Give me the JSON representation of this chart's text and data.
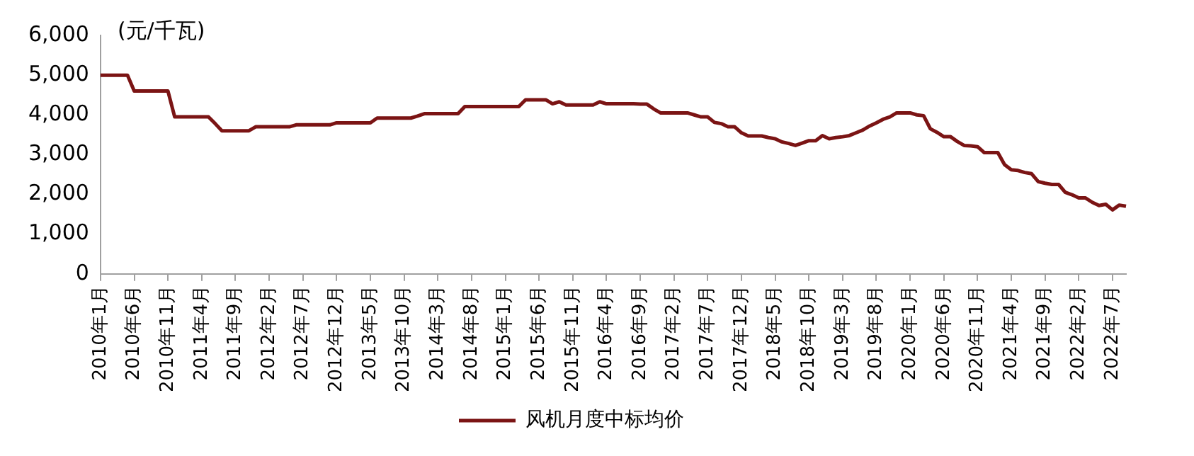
{
  "chart_data": {
    "type": "line",
    "ylabel": "(元/千瓦)",
    "categories": [
      "2010年1月",
      null,
      null,
      null,
      null,
      "2010年6月",
      null,
      null,
      null,
      null,
      "2010年11月",
      null,
      null,
      null,
      null,
      "2011年4月",
      null,
      null,
      null,
      null,
      "2011年9月",
      null,
      null,
      null,
      null,
      "2012年2月",
      null,
      null,
      null,
      null,
      "2012年7月",
      null,
      null,
      null,
      null,
      "2012年12月",
      null,
      null,
      null,
      null,
      "2013年5月",
      null,
      null,
      null,
      null,
      "2013年10月",
      null,
      null,
      null,
      null,
      "2014年3月",
      null,
      null,
      null,
      null,
      "2014年8月",
      null,
      null,
      null,
      null,
      "2015年1月",
      null,
      null,
      null,
      null,
      "2015年6月",
      null,
      null,
      null,
      null,
      "2015年11月",
      null,
      null,
      null,
      null,
      "2016年4月",
      null,
      null,
      null,
      null,
      "2016年9月",
      null,
      null,
      null,
      null,
      "2017年2月",
      null,
      null,
      null,
      null,
      "2017年7月",
      null,
      null,
      null,
      null,
      "2017年12月",
      null,
      null,
      null,
      null,
      "2018年5月",
      null,
      null,
      null,
      null,
      "2018年10月",
      null,
      null,
      null,
      null,
      "2019年3月",
      null,
      null,
      null,
      null,
      "2019年8月",
      null,
      null,
      null,
      null,
      "2020年1月",
      null,
      null,
      null,
      null,
      "2020年6月",
      null,
      null,
      null,
      null,
      "2020年11月",
      null,
      null,
      null,
      null,
      "2021年4月",
      null,
      null,
      null,
      null,
      "2021年9月",
      null,
      null,
      null,
      null,
      "2022年2月",
      null,
      null,
      null,
      null,
      "2022年7月",
      null,
      null
    ],
    "series": [
      {
        "name": "风机月度中标均价",
        "color": "#7b1414",
        "values": [
          5000,
          5000,
          5000,
          5000,
          5000,
          4600,
          4600,
          4600,
          4600,
          4600,
          4600,
          3950,
          3950,
          3950,
          3950,
          3950,
          3950,
          3780,
          3600,
          3600,
          3600,
          3600,
          3600,
          3700,
          3700,
          3700,
          3700,
          3700,
          3700,
          3750,
          3750,
          3750,
          3750,
          3750,
          3750,
          3800,
          3800,
          3800,
          3800,
          3800,
          3800,
          3920,
          3920,
          3920,
          3920,
          3920,
          3920,
          3970,
          4030,
          4030,
          4030,
          4030,
          4030,
          4030,
          4210,
          4210,
          4210,
          4210,
          4210,
          4210,
          4210,
          4210,
          4210,
          4380,
          4380,
          4380,
          4380,
          4280,
          4330,
          4250,
          4250,
          4250,
          4250,
          4250,
          4330,
          4280,
          4280,
          4280,
          4280,
          4280,
          4270,
          4270,
          4150,
          4050,
          4050,
          4050,
          4050,
          4050,
          4000,
          3950,
          3950,
          3810,
          3780,
          3700,
          3700,
          3550,
          3470,
          3470,
          3470,
          3430,
          3400,
          3320,
          3280,
          3230,
          3290,
          3350,
          3350,
          3480,
          3400,
          3430,
          3450,
          3480,
          3550,
          3620,
          3720,
          3800,
          3890,
          3950,
          4050,
          4050,
          4050,
          4000,
          3980,
          3650,
          3560,
          3450,
          3450,
          3330,
          3230,
          3220,
          3200,
          3050,
          3050,
          3050,
          2750,
          2620,
          2600,
          2550,
          2520,
          2320,
          2280,
          2250,
          2250,
          2050,
          1990,
          1910,
          1910,
          1800,
          1720,
          1750,
          1610,
          1730,
          1700
        ]
      }
    ],
    "ylim": [
      0,
      6000
    ],
    "yticks": [
      {
        "value": 0,
        "label": "0"
      },
      {
        "value": 1000,
        "label": "1,000"
      },
      {
        "value": 2000,
        "label": "2,000"
      },
      {
        "value": 3000,
        "label": "3,000"
      },
      {
        "value": 4000,
        "label": "4,000"
      },
      {
        "value": 5000,
        "label": "5,000"
      },
      {
        "value": 6000,
        "label": "6,000"
      }
    ],
    "grid": false,
    "legend": "bottom",
    "marker": "none",
    "line_style": "solid"
  }
}
